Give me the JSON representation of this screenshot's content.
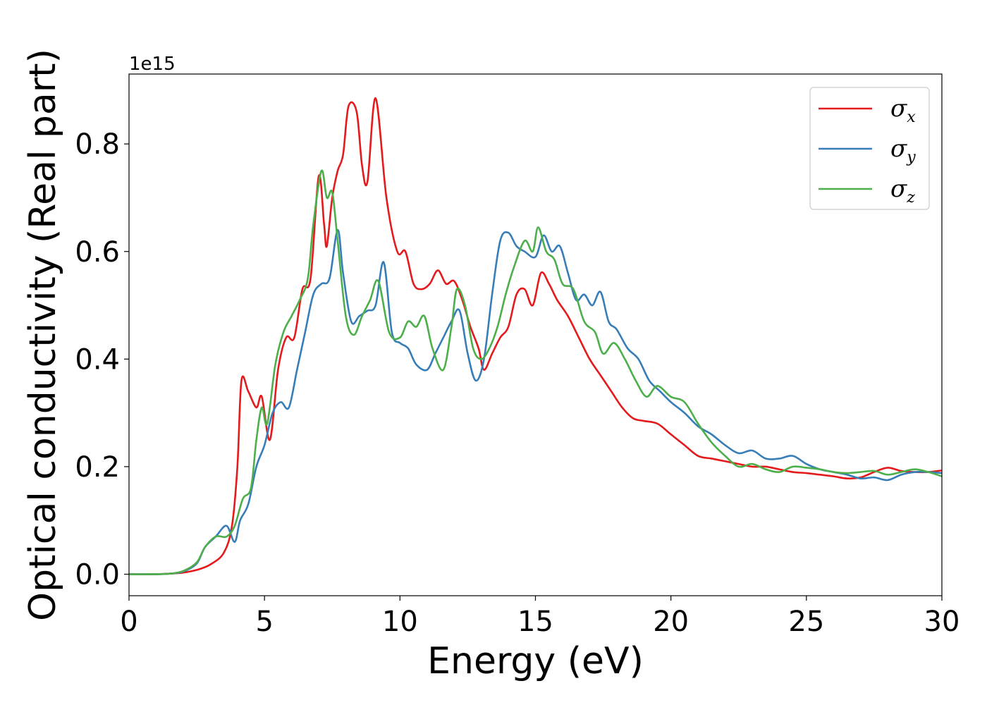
{
  "chart_data": {
    "type": "line",
    "xlabel": "Energy (eV)",
    "ylabel": "Optical conductivity (Real part)",
    "y_offset_label": "1e15",
    "xlim": [
      0,
      30
    ],
    "ylim": [
      -0.04,
      0.93
    ],
    "xticks": [
      0,
      5,
      10,
      15,
      20,
      25,
      30
    ],
    "xtick_labels": [
      "0",
      "5",
      "10",
      "15",
      "20",
      "25",
      "30"
    ],
    "yticks": [
      0.0,
      0.2,
      0.4,
      0.6,
      0.8
    ],
    "ytick_labels": [
      "0.0",
      "0.2",
      "0.4",
      "0.6",
      "0.8"
    ],
    "grid": false,
    "legend_position": "top-right",
    "series": [
      {
        "name": "σ",
        "subscript": "x",
        "color": "#e41a1c",
        "points": [
          [
            0,
            0.0
          ],
          [
            1,
            0.0
          ],
          [
            1.5,
            0.001
          ],
          [
            2,
            0.003
          ],
          [
            2.5,
            0.008
          ],
          [
            3,
            0.018
          ],
          [
            3.5,
            0.04
          ],
          [
            3.8,
            0.09
          ],
          [
            4.0,
            0.2
          ],
          [
            4.15,
            0.36
          ],
          [
            4.4,
            0.34
          ],
          [
            4.7,
            0.31
          ],
          [
            4.9,
            0.33
          ],
          [
            5.2,
            0.25
          ],
          [
            5.5,
            0.38
          ],
          [
            5.8,
            0.44
          ],
          [
            6.1,
            0.44
          ],
          [
            6.4,
            0.53
          ],
          [
            6.7,
            0.55
          ],
          [
            7.0,
            0.74
          ],
          [
            7.2,
            0.65
          ],
          [
            7.3,
            0.61
          ],
          [
            7.5,
            0.7
          ],
          [
            7.7,
            0.75
          ],
          [
            7.9,
            0.78
          ],
          [
            8.1,
            0.87
          ],
          [
            8.4,
            0.86
          ],
          [
            8.6,
            0.76
          ],
          [
            8.8,
            0.73
          ],
          [
            9.1,
            0.885
          ],
          [
            9.5,
            0.7
          ],
          [
            9.9,
            0.6
          ],
          [
            10.2,
            0.6
          ],
          [
            10.5,
            0.54
          ],
          [
            10.8,
            0.53
          ],
          [
            11.1,
            0.54
          ],
          [
            11.4,
            0.565
          ],
          [
            11.7,
            0.54
          ],
          [
            12.0,
            0.545
          ],
          [
            12.3,
            0.51
          ],
          [
            12.6,
            0.46
          ],
          [
            12.9,
            0.42
          ],
          [
            13.1,
            0.38
          ],
          [
            13.4,
            0.41
          ],
          [
            13.7,
            0.44
          ],
          [
            14.0,
            0.46
          ],
          [
            14.3,
            0.52
          ],
          [
            14.6,
            0.53
          ],
          [
            14.9,
            0.5
          ],
          [
            15.2,
            0.56
          ],
          [
            15.5,
            0.54
          ],
          [
            15.8,
            0.51
          ],
          [
            16.2,
            0.48
          ],
          [
            16.6,
            0.44
          ],
          [
            17.0,
            0.4
          ],
          [
            17.4,
            0.37
          ],
          [
            17.8,
            0.34
          ],
          [
            18.2,
            0.31
          ],
          [
            18.6,
            0.29
          ],
          [
            19.0,
            0.285
          ],
          [
            19.5,
            0.28
          ],
          [
            20.0,
            0.26
          ],
          [
            20.5,
            0.24
          ],
          [
            21.0,
            0.22
          ],
          [
            21.5,
            0.215
          ],
          [
            22.0,
            0.21
          ],
          [
            22.5,
            0.205
          ],
          [
            23.0,
            0.2
          ],
          [
            23.5,
            0.2
          ],
          [
            24.0,
            0.195
          ],
          [
            24.5,
            0.19
          ],
          [
            25.0,
            0.188
          ],
          [
            25.5,
            0.185
          ],
          [
            26.0,
            0.182
          ],
          [
            26.5,
            0.178
          ],
          [
            27.0,
            0.18
          ],
          [
            27.5,
            0.19
          ],
          [
            28.0,
            0.198
          ],
          [
            28.5,
            0.192
          ],
          [
            29.0,
            0.19
          ],
          [
            29.5,
            0.19
          ],
          [
            30.0,
            0.193
          ]
        ]
      },
      {
        "name": "σ",
        "subscript": "y",
        "color": "#377eb8",
        "points": [
          [
            0,
            0.0
          ],
          [
            1,
            0.0
          ],
          [
            1.5,
            0.001
          ],
          [
            2,
            0.005
          ],
          [
            2.5,
            0.02
          ],
          [
            2.8,
            0.05
          ],
          [
            3.2,
            0.07
          ],
          [
            3.6,
            0.09
          ],
          [
            3.9,
            0.06
          ],
          [
            4.1,
            0.1
          ],
          [
            4.4,
            0.13
          ],
          [
            4.7,
            0.2
          ],
          [
            5.0,
            0.24
          ],
          [
            5.3,
            0.3
          ],
          [
            5.6,
            0.32
          ],
          [
            5.9,
            0.31
          ],
          [
            6.2,
            0.38
          ],
          [
            6.5,
            0.45
          ],
          [
            6.8,
            0.52
          ],
          [
            7.1,
            0.54
          ],
          [
            7.4,
            0.55
          ],
          [
            7.7,
            0.64
          ],
          [
            7.9,
            0.56
          ],
          [
            8.2,
            0.47
          ],
          [
            8.5,
            0.48
          ],
          [
            8.8,
            0.49
          ],
          [
            9.1,
            0.5
          ],
          [
            9.4,
            0.58
          ],
          [
            9.7,
            0.45
          ],
          [
            10.0,
            0.43
          ],
          [
            10.3,
            0.42
          ],
          [
            10.6,
            0.39
          ],
          [
            11.0,
            0.38
          ],
          [
            11.3,
            0.41
          ],
          [
            11.6,
            0.44
          ],
          [
            11.9,
            0.47
          ],
          [
            12.2,
            0.49
          ],
          [
            12.5,
            0.41
          ],
          [
            12.8,
            0.36
          ],
          [
            13.1,
            0.4
          ],
          [
            13.4,
            0.52
          ],
          [
            13.7,
            0.62
          ],
          [
            14.0,
            0.635
          ],
          [
            14.3,
            0.61
          ],
          [
            14.6,
            0.6
          ],
          [
            15.0,
            0.59
          ],
          [
            15.3,
            0.63
          ],
          [
            15.6,
            0.6
          ],
          [
            15.9,
            0.61
          ],
          [
            16.2,
            0.56
          ],
          [
            16.5,
            0.51
          ],
          [
            16.8,
            0.52
          ],
          [
            17.1,
            0.5
          ],
          [
            17.4,
            0.525
          ],
          [
            17.7,
            0.47
          ],
          [
            18.0,
            0.455
          ],
          [
            18.4,
            0.42
          ],
          [
            18.8,
            0.4
          ],
          [
            19.2,
            0.36
          ],
          [
            19.6,
            0.34
          ],
          [
            20.0,
            0.32
          ],
          [
            20.5,
            0.3
          ],
          [
            21.0,
            0.275
          ],
          [
            21.5,
            0.26
          ],
          [
            22.0,
            0.24
          ],
          [
            22.5,
            0.225
          ],
          [
            23.0,
            0.23
          ],
          [
            23.5,
            0.215
          ],
          [
            24.0,
            0.215
          ],
          [
            24.5,
            0.22
          ],
          [
            25.0,
            0.205
          ],
          [
            25.5,
            0.195
          ],
          [
            26.0,
            0.19
          ],
          [
            26.5,
            0.185
          ],
          [
            27.0,
            0.178
          ],
          [
            27.5,
            0.18
          ],
          [
            28.0,
            0.175
          ],
          [
            28.5,
            0.185
          ],
          [
            29.0,
            0.19
          ],
          [
            29.5,
            0.19
          ],
          [
            30.0,
            0.188
          ]
        ]
      },
      {
        "name": "σ",
        "subscript": "z",
        "color": "#4daf4a",
        "points": [
          [
            0,
            0.0
          ],
          [
            1,
            0.0
          ],
          [
            1.5,
            0.001
          ],
          [
            2,
            0.006
          ],
          [
            2.5,
            0.022
          ],
          [
            2.8,
            0.05
          ],
          [
            3.2,
            0.07
          ],
          [
            3.6,
            0.07
          ],
          [
            3.9,
            0.09
          ],
          [
            4.2,
            0.14
          ],
          [
            4.5,
            0.16
          ],
          [
            4.7,
            0.25
          ],
          [
            4.9,
            0.31
          ],
          [
            5.1,
            0.28
          ],
          [
            5.4,
            0.39
          ],
          [
            5.7,
            0.45
          ],
          [
            6.0,
            0.48
          ],
          [
            6.3,
            0.51
          ],
          [
            6.6,
            0.55
          ],
          [
            6.8,
            0.65
          ],
          [
            7.1,
            0.75
          ],
          [
            7.3,
            0.7
          ],
          [
            7.5,
            0.71
          ],
          [
            7.7,
            0.62
          ],
          [
            8.0,
            0.48
          ],
          [
            8.3,
            0.445
          ],
          [
            8.6,
            0.48
          ],
          [
            8.9,
            0.51
          ],
          [
            9.2,
            0.545
          ],
          [
            9.6,
            0.45
          ],
          [
            10.0,
            0.44
          ],
          [
            10.3,
            0.47
          ],
          [
            10.6,
            0.46
          ],
          [
            10.9,
            0.48
          ],
          [
            11.2,
            0.42
          ],
          [
            11.6,
            0.38
          ],
          [
            11.9,
            0.46
          ],
          [
            12.1,
            0.53
          ],
          [
            12.4,
            0.5
          ],
          [
            12.7,
            0.42
          ],
          [
            13.0,
            0.4
          ],
          [
            13.3,
            0.42
          ],
          [
            13.6,
            0.46
          ],
          [
            13.9,
            0.52
          ],
          [
            14.2,
            0.57
          ],
          [
            14.6,
            0.62
          ],
          [
            14.9,
            0.6
          ],
          [
            15.1,
            0.645
          ],
          [
            15.4,
            0.6
          ],
          [
            15.7,
            0.585
          ],
          [
            16.0,
            0.54
          ],
          [
            16.4,
            0.53
          ],
          [
            16.8,
            0.47
          ],
          [
            17.2,
            0.45
          ],
          [
            17.5,
            0.41
          ],
          [
            17.9,
            0.43
          ],
          [
            18.3,
            0.4
          ],
          [
            18.7,
            0.36
          ],
          [
            19.1,
            0.33
          ],
          [
            19.5,
            0.35
          ],
          [
            20.0,
            0.33
          ],
          [
            20.5,
            0.32
          ],
          [
            21.0,
            0.28
          ],
          [
            21.5,
            0.245
          ],
          [
            22.0,
            0.22
          ],
          [
            22.5,
            0.2
          ],
          [
            23.0,
            0.205
          ],
          [
            23.5,
            0.195
          ],
          [
            24.0,
            0.19
          ],
          [
            24.5,
            0.2
          ],
          [
            25.0,
            0.198
          ],
          [
            25.5,
            0.195
          ],
          [
            26.0,
            0.19
          ],
          [
            26.5,
            0.188
          ],
          [
            27.0,
            0.19
          ],
          [
            27.5,
            0.192
          ],
          [
            28.0,
            0.185
          ],
          [
            28.5,
            0.19
          ],
          [
            29.0,
            0.195
          ],
          [
            29.5,
            0.19
          ],
          [
            30.0,
            0.182
          ]
        ]
      }
    ]
  }
}
